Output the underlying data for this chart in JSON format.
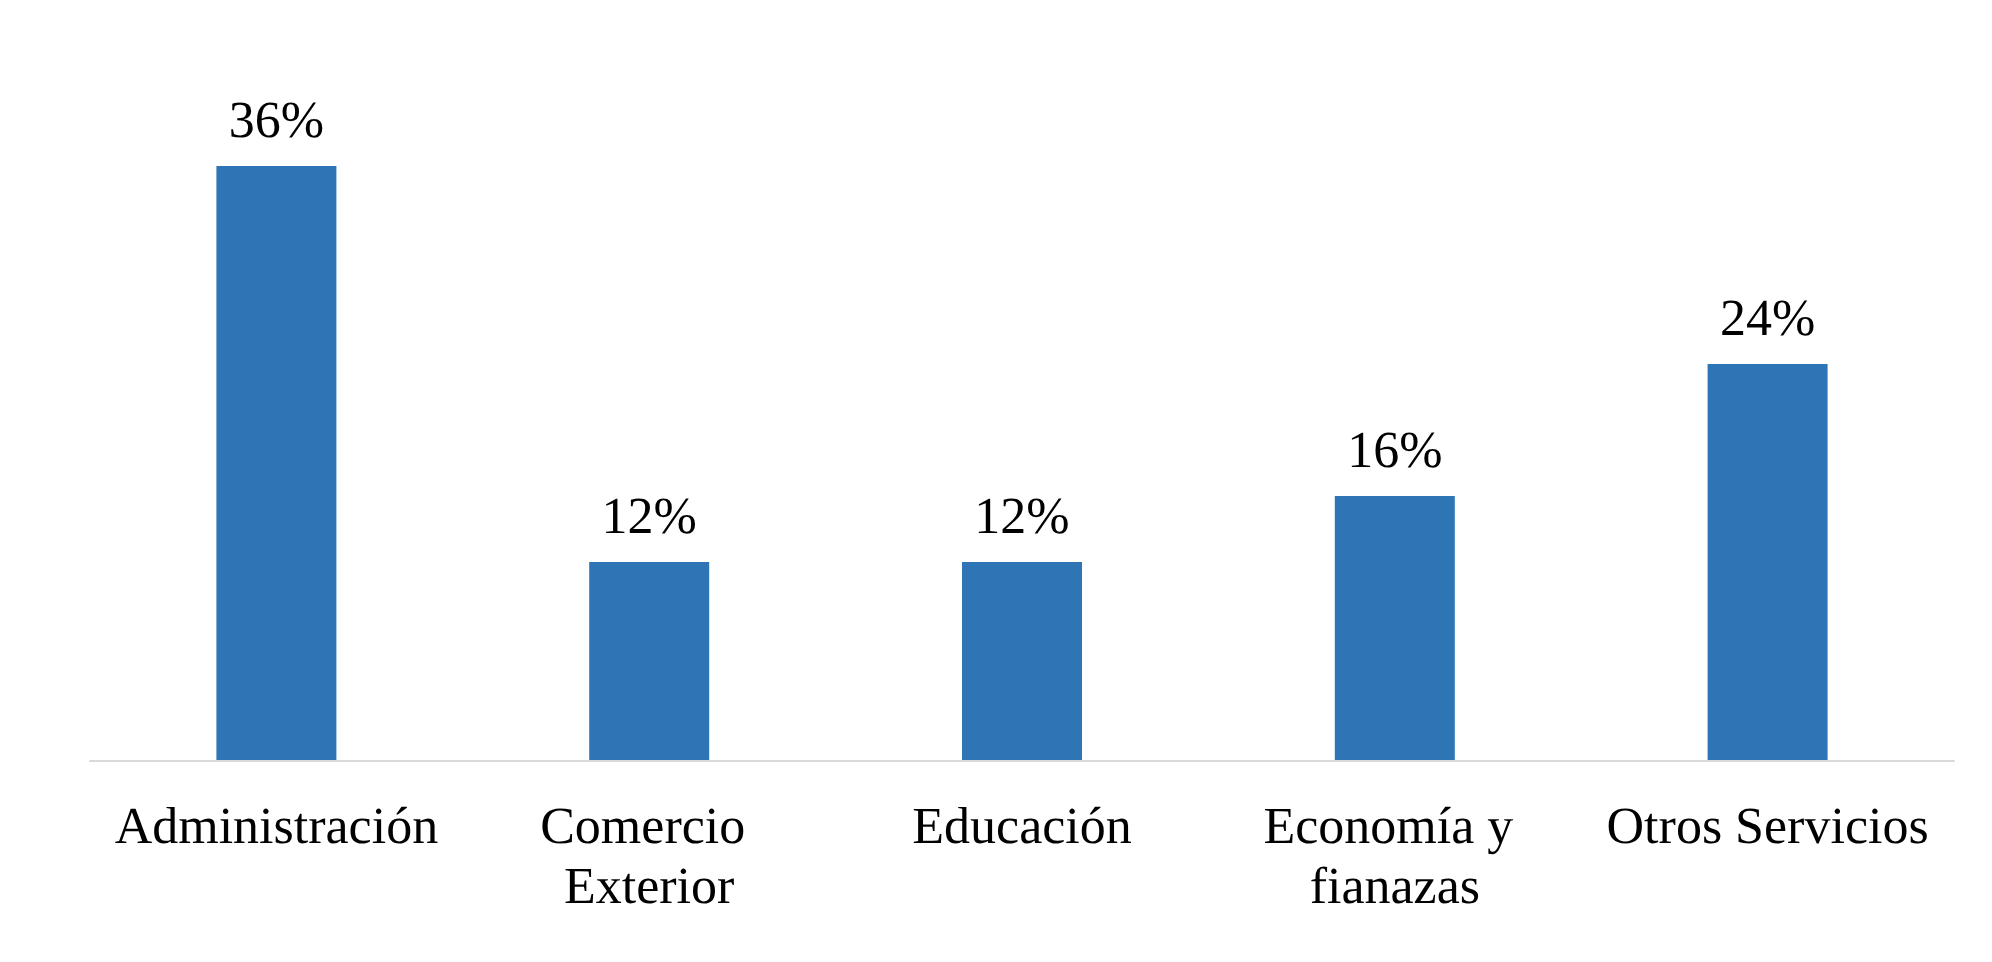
{
  "chart_data": {
    "type": "bar",
    "categories": [
      "Administración",
      "Comercio Exterior",
      "Educación",
      "Economía y fianazas",
      "Otros Servicios"
    ],
    "values": [
      36,
      12,
      12,
      16,
      24
    ],
    "value_labels": [
      "36%",
      "12%",
      "12%",
      "16%",
      "24%"
    ],
    "color": "#2e75b6"
  }
}
